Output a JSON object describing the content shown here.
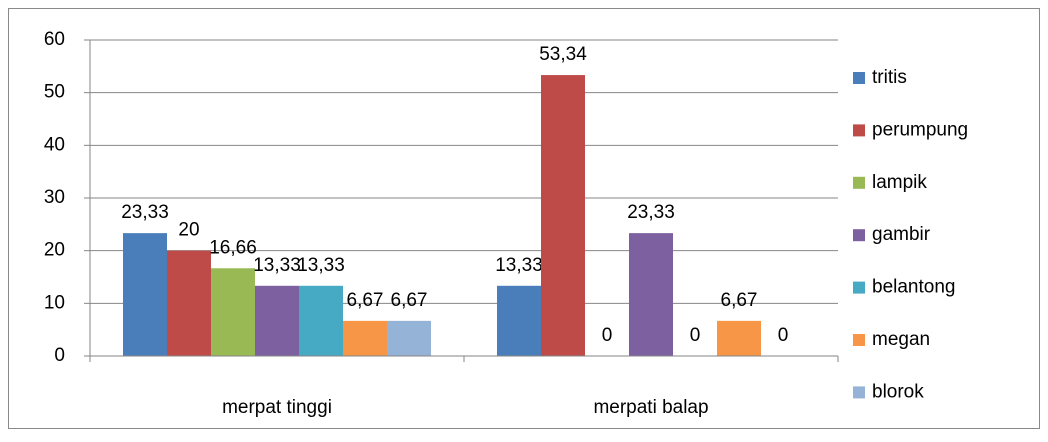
{
  "chart_data": {
    "type": "bar",
    "categories": [
      "merpat tinggi",
      "merpati balap"
    ],
    "series": [
      {
        "name": "tritis",
        "color": "#4a7ebb",
        "values": [
          23.33,
          13.33
        ],
        "value_labels": [
          "23,33",
          "13,33"
        ]
      },
      {
        "name": "perumpung",
        "color": "#be4b48",
        "values": [
          20,
          53.34
        ],
        "value_labels": [
          "20",
          "53,34"
        ]
      },
      {
        "name": "lampik",
        "color": "#98b954",
        "values": [
          16.66,
          0
        ],
        "value_labels": [
          "16,66",
          "0"
        ]
      },
      {
        "name": "gambir",
        "color": "#7d60a0",
        "values": [
          13.33,
          23.33
        ],
        "value_labels": [
          "13,33",
          "23,33"
        ]
      },
      {
        "name": "belantong",
        "color": "#46aac5",
        "values": [
          13.33,
          0
        ],
        "value_labels": [
          "13,33",
          "0"
        ]
      },
      {
        "name": "megan",
        "color": "#f79646",
        "values": [
          6.67,
          6.67
        ],
        "value_labels": [
          "6,67",
          "6,67"
        ]
      },
      {
        "name": "blorok",
        "color": "#95b3d7",
        "values": [
          6.67,
          0
        ],
        "value_labels": [
          "6,67",
          "0"
        ]
      }
    ],
    "ylim": [
      0,
      60
    ],
    "yticks": [
      0,
      10,
      20,
      30,
      40,
      50,
      60
    ],
    "grid": true,
    "legend": "right"
  }
}
